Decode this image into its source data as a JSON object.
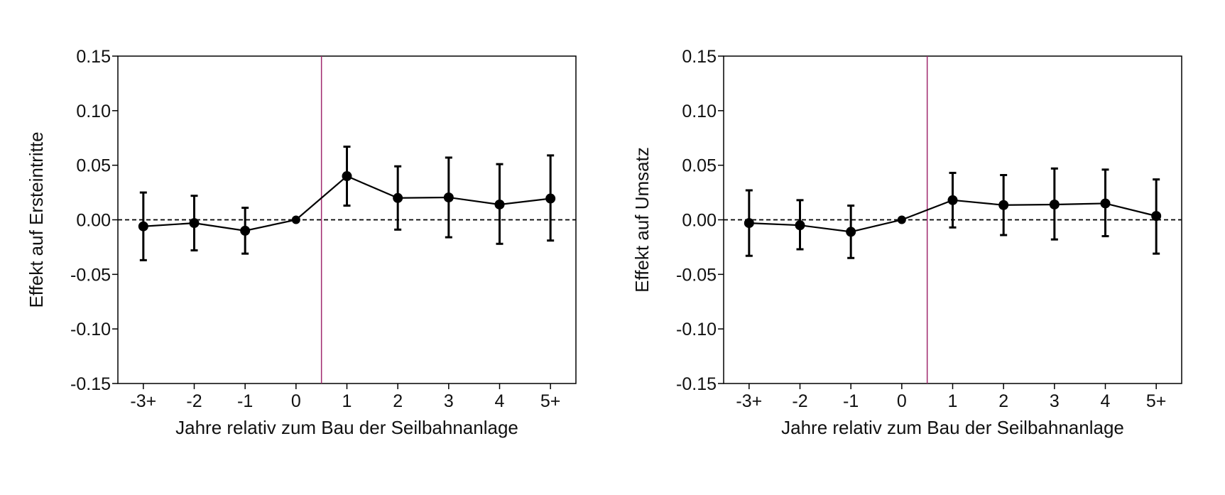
{
  "colors": {
    "marker": "#000000",
    "axis": "#000000",
    "event_line": "#a0286e",
    "zero_line": "#000000"
  },
  "chart_data": [
    {
      "type": "line",
      "name": "ersteintritte",
      "xlabel": "Jahre relativ zum Bau der Seilbahnanlage",
      "ylabel": "Effekt auf Ersteintritte",
      "categories": [
        "-3+",
        "-2",
        "-1",
        "0",
        "1",
        "2",
        "3",
        "4",
        "5+"
      ],
      "ylim": [
        -0.15,
        0.15
      ],
      "yticks": [
        0.15,
        0.1,
        0.05,
        0.0,
        -0.05,
        -0.1,
        -0.15
      ],
      "ytick_labels": [
        "0.15",
        "0.10",
        "0.05",
        "0.00",
        "-0.05",
        "-0.10",
        "-0.15"
      ],
      "event_line_x": 0.5,
      "zero_line": true,
      "series": [
        {
          "name": "Effekt auf Ersteintritte",
          "values": [
            -0.006,
            -0.003,
            -0.01,
            0.0,
            0.04,
            0.02,
            0.0205,
            0.014,
            0.0195
          ],
          "ci_lower": [
            -0.037,
            -0.028,
            -0.031,
            0.0,
            0.013,
            -0.009,
            -0.016,
            -0.022,
            -0.019
          ],
          "ci_upper": [
            0.025,
            0.022,
            0.011,
            0.0,
            0.067,
            0.049,
            0.057,
            0.051,
            0.059
          ]
        }
      ]
    },
    {
      "type": "line",
      "name": "umsatz",
      "xlabel": "Jahre relativ zum Bau der Seilbahnanlage",
      "ylabel": "Effekt auf Umsatz",
      "categories": [
        "-3+",
        "-2",
        "-1",
        "0",
        "1",
        "2",
        "3",
        "4",
        "5+"
      ],
      "ylim": [
        -0.15,
        0.15
      ],
      "yticks": [
        0.15,
        0.1,
        0.05,
        0.0,
        -0.05,
        -0.1,
        -0.15
      ],
      "ytick_labels": [
        "0.15",
        "0.10",
        "0.05",
        "0.00",
        "-0.05",
        "-0.10",
        "-0.15"
      ],
      "event_line_x": 0.5,
      "zero_line": true,
      "series": [
        {
          "name": "Effekt auf Umsatz",
          "values": [
            -0.003,
            -0.005,
            -0.011,
            0.0,
            0.018,
            0.0135,
            0.014,
            0.015,
            0.0035
          ],
          "ci_lower": [
            -0.033,
            -0.027,
            -0.035,
            0.0,
            -0.007,
            -0.014,
            -0.018,
            -0.015,
            -0.031
          ],
          "ci_upper": [
            0.027,
            0.018,
            0.013,
            0.0,
            0.043,
            0.041,
            0.047,
            0.046,
            0.037
          ]
        }
      ]
    }
  ]
}
